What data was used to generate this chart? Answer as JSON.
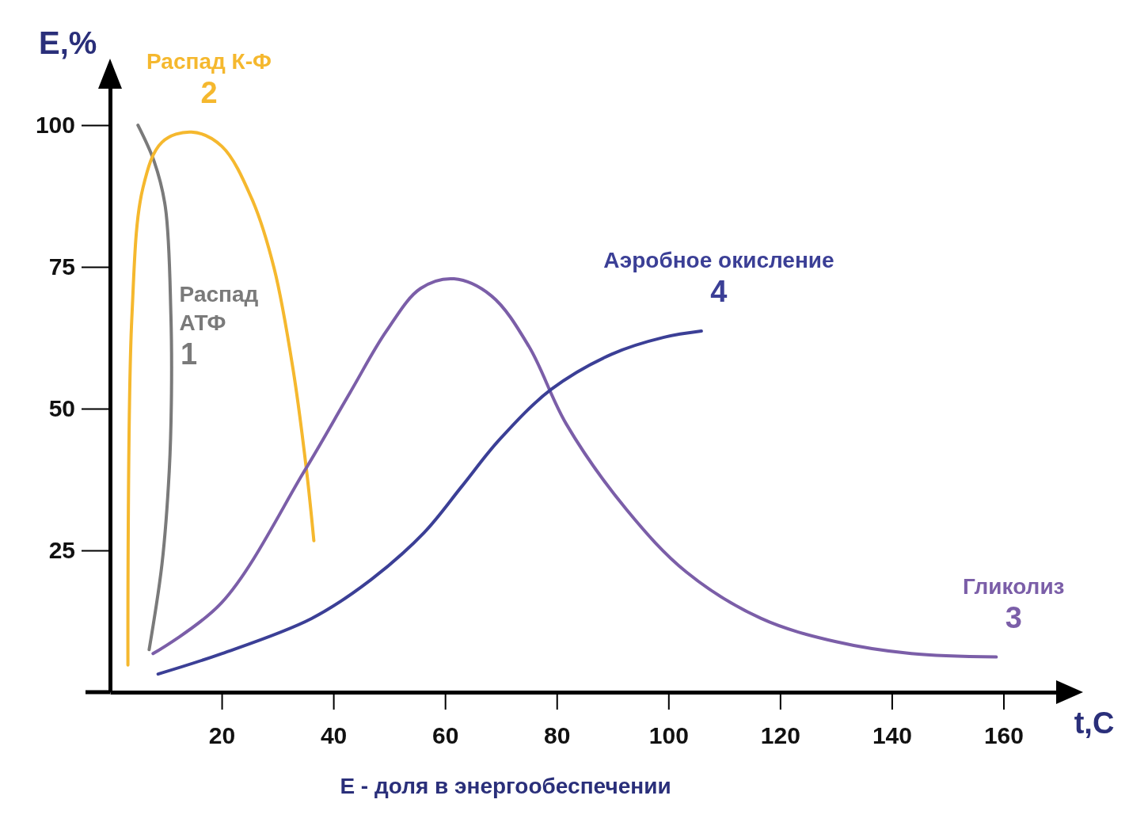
{
  "chart_data": {
    "type": "line",
    "xlabel": "t,C",
    "ylabel": "E,%",
    "xlim": [
      0,
      170
    ],
    "ylim": [
      0,
      107
    ],
    "xticks": [
      20,
      40,
      60,
      80,
      100,
      120,
      140,
      160
    ],
    "yticks": [
      25,
      50,
      75,
      100
    ],
    "grid": false,
    "legend": false,
    "marker": "none",
    "line_style": "solid",
    "annotations": [
      {
        "text": "1",
        "x": 11,
        "y": 52.7
      },
      {
        "text": "2",
        "x": 14.6,
        "y": 98.8
      },
      {
        "text": "3",
        "x": 158.7,
        "y": 6.2
      },
      {
        "text": "4",
        "x": 105.9,
        "y": 63.7
      },
      "E - доля в энергообеспечении"
    ],
    "series": [
      {
        "name": "Распад АТФ",
        "color": "#7a7a7a",
        "x": [
          5,
          7.9,
          9.9,
          10.9,
          11,
          10.6,
          9.3,
          7
        ],
        "values": [
          100,
          93.6,
          85.6,
          66.4,
          52.7,
          39,
          22.6,
          7.5
        ]
      },
      {
        "name": "Распад К-Ф",
        "color": "#f5b82e",
        "x": [
          3.2,
          3.9,
          5.9,
          9.3,
          14.6,
          20,
          25.4,
          29.4,
          32.8,
          35.2,
          36.5
        ],
        "values": [
          4.8,
          66,
          89,
          97,
          98.8,
          96.3,
          87,
          74.7,
          56.8,
          39,
          26.7
        ]
      },
      {
        "name": "Гликолиз",
        "color": "#7b5ea8",
        "x": [
          7.7,
          20,
          34.8,
          42.9,
          49.5,
          55.6,
          61.6,
          68.3,
          75,
          81.7,
          92.5,
          103.2,
          116.6,
          130,
          143.5,
          158.7
        ],
        "values": [
          6.8,
          15.8,
          39,
          52.7,
          63.7,
          71.2,
          72.9,
          69.9,
          61,
          47.3,
          32.2,
          21.2,
          13,
          8.9,
          6.8,
          6.2
        ]
      },
      {
        "name": "Аэробное окисление",
        "color": "#3b3f96",
        "x": [
          8.6,
          20,
          36.1,
          46.8,
          56.2,
          63,
          69.7,
          79,
          89.8,
          99.2,
          105.9
        ],
        "values": [
          3.2,
          6.8,
          13,
          19.9,
          28.1,
          36.3,
          44.5,
          53.4,
          59.6,
          62.6,
          63.7
        ]
      }
    ]
  }
}
